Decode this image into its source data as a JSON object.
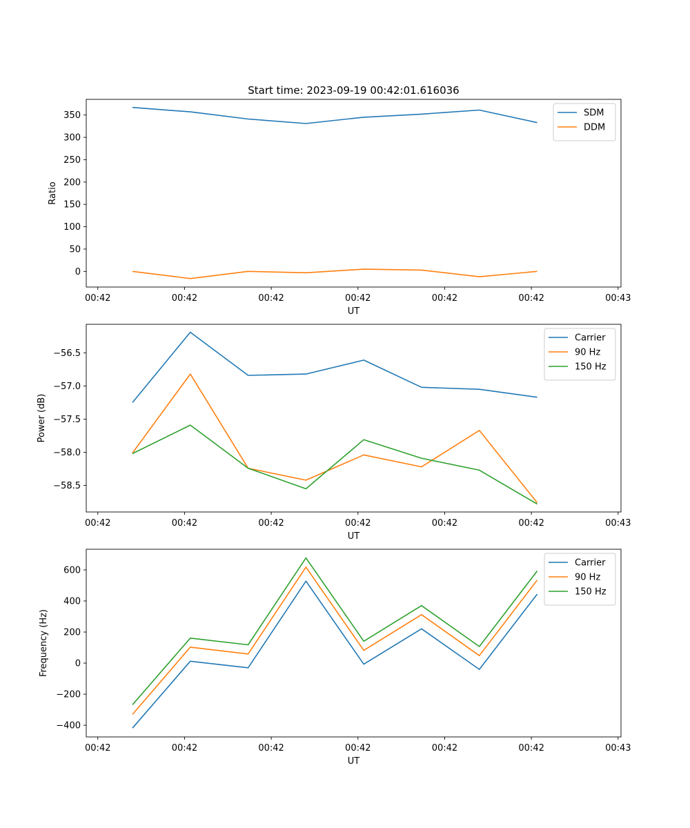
{
  "chart_data": [
    {
      "type": "line",
      "title": "Start time: 2023-09-19 00:42:01.616036",
      "xlabel": "UT",
      "ylabel": "Ratio",
      "x": [
        1,
        2,
        3,
        4,
        5,
        6,
        7,
        8
      ],
      "xlim": [
        0.2,
        9.45
      ],
      "x_ticks": [
        0.4,
        1.9,
        3.4,
        4.9,
        6.4,
        7.9,
        9.4
      ],
      "x_tick_labels": [
        "00:42",
        "00:42",
        "00:42",
        "00:42",
        "00:42",
        "00:42",
        "00:43"
      ],
      "ylim": [
        -35,
        385
      ],
      "y_ticks": [
        0,
        50,
        100,
        150,
        200,
        250,
        300,
        350
      ],
      "legend_position": "top-right",
      "series": [
        {
          "name": "SDM",
          "color": "#1f77b4",
          "values": [
            367,
            357,
            341,
            331,
            345,
            352,
            361,
            333
          ]
        },
        {
          "name": "DDM",
          "color": "#ff7f0e",
          "values": [
            0,
            -16,
            0,
            -3,
            5,
            3,
            -12,
            0
          ]
        }
      ]
    },
    {
      "type": "line",
      "title": "",
      "xlabel": "UT",
      "ylabel": "Power (dB)",
      "x": [
        1,
        2,
        3,
        4,
        5,
        6,
        7,
        8
      ],
      "xlim": [
        0.2,
        9.45
      ],
      "x_ticks": [
        0.4,
        1.9,
        3.4,
        4.9,
        6.4,
        7.9,
        9.4
      ],
      "x_tick_labels": [
        "00:42",
        "00:42",
        "00:42",
        "00:42",
        "00:42",
        "00:42",
        "00:43"
      ],
      "ylim": [
        -58.9,
        -56.07
      ],
      "y_ticks": [
        -58.5,
        -58.0,
        -57.5,
        -57.0,
        -56.5
      ],
      "y_tick_labels": [
        "−58.5",
        "−58.0",
        "−57.5",
        "−57.0",
        "−56.5"
      ],
      "legend_position": "top-right",
      "series": [
        {
          "name": "Carrier",
          "color": "#1f77b4",
          "values": [
            -57.25,
            -56.19,
            -56.84,
            -56.82,
            -56.61,
            -57.02,
            -57.05,
            -57.17
          ]
        },
        {
          "name": "90 Hz",
          "color": "#ff7f0e",
          "values": [
            -58.01,
            -56.82,
            -58.24,
            -58.42,
            -58.04,
            -58.22,
            -57.67,
            -58.76
          ]
        },
        {
          "name": "150 Hz",
          "color": "#2ca02c",
          "values": [
            -58.02,
            -57.59,
            -58.24,
            -58.55,
            -57.81,
            -58.09,
            -58.27,
            -58.78
          ]
        }
      ]
    },
    {
      "type": "line",
      "title": "",
      "xlabel": "UT",
      "ylabel": "Frequency (Hz)",
      "x": [
        1,
        2,
        3,
        4,
        5,
        6,
        7,
        8
      ],
      "xlim": [
        0.2,
        9.45
      ],
      "x_ticks": [
        0.4,
        1.9,
        3.4,
        4.9,
        6.4,
        7.9,
        9.4
      ],
      "x_tick_labels": [
        "00:42",
        "00:42",
        "00:42",
        "00:42",
        "00:42",
        "00:42",
        "00:43"
      ],
      "ylim": [
        -475,
        733
      ],
      "y_ticks": [
        -400,
        -200,
        0,
        200,
        400,
        600
      ],
      "y_tick_labels": [
        "−400",
        "−200",
        "0",
        "200",
        "400",
        "600"
      ],
      "legend_position": "top-right",
      "series": [
        {
          "name": "Carrier",
          "color": "#1f77b4",
          "values": [
            -418,
            12,
            -30,
            528,
            -7,
            221,
            -40,
            444
          ]
        },
        {
          "name": "90 Hz",
          "color": "#ff7f0e",
          "values": [
            -330,
            103,
            59,
            618,
            82,
            312,
            48,
            534
          ]
        },
        {
          "name": "150 Hz",
          "color": "#2ca02c",
          "values": [
            -268,
            161,
            118,
            677,
            141,
            370,
            107,
            593
          ]
        }
      ]
    }
  ]
}
